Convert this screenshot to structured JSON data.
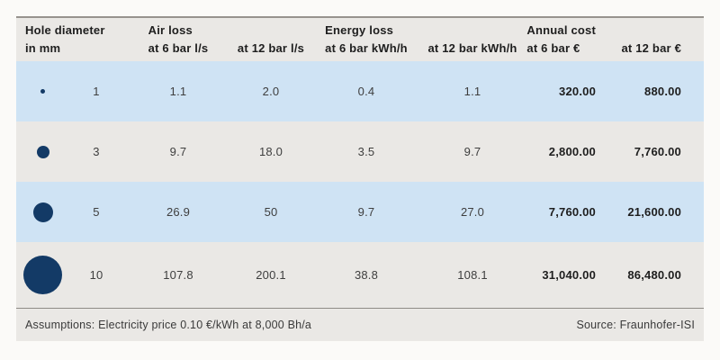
{
  "header": {
    "hole": {
      "line1": "Hole diameter",
      "line2": "in mm"
    },
    "air": {
      "group": "Air loss",
      "sub6": "at 6 bar l/s",
      "sub12": "at 12 bar l/s"
    },
    "energy": {
      "group": "Energy loss",
      "sub6": "at 6 bar kWh/h",
      "sub12": "at 12 bar kWh/h"
    },
    "cost": {
      "group": "Annual cost",
      "sub6": "at 6 bar €",
      "sub12": "at 12 bar €"
    }
  },
  "rows": [
    {
      "diameter": "1",
      "air6": "1.1",
      "air12": "2.0",
      "energy6": "0.4",
      "energy12": "1.1",
      "cost6": "320.00",
      "cost12": "880.00"
    },
    {
      "diameter": "3",
      "air6": "9.7",
      "air12": "18.0",
      "energy6": "3.5",
      "energy12": "9.7",
      "cost6": "2,800.00",
      "cost12": "7,760.00"
    },
    {
      "diameter": "5",
      "air6": "26.9",
      "air12": "50",
      "energy6": "9.7",
      "energy12": "27.0",
      "cost6": "7,760.00",
      "cost12": "21,600.00"
    },
    {
      "diameter": "10",
      "air6": "107.8",
      "air12": "200.1",
      "energy6": "38.8",
      "energy12": "108.1",
      "cost6": "31,040.00",
      "cost12": "86,480.00"
    }
  ],
  "footer": {
    "assumptions": "Assumptions: Electricity price 0.10 €/kWh at 8,000 Bh/a",
    "source": "Source: Fraunhofer-ISI"
  },
  "colors": {
    "row_highlight_blue": "#cfe3f4",
    "panel_gray": "#eae8e5",
    "dot_navy": "#133a66"
  },
  "chart_data": {
    "type": "table",
    "columns": [
      "Hole diameter in mm",
      "Air loss at 6 bar l/s",
      "Air loss at 12 bar l/s",
      "Energy loss at 6 bar kWh/h",
      "Energy loss at 12 bar kWh/h",
      "Annual cost at 6 bar €",
      "Annual cost at 12 bar €"
    ],
    "rows": [
      [
        1,
        1.1,
        2.0,
        0.4,
        1.1,
        320.0,
        880.0
      ],
      [
        3,
        9.7,
        18.0,
        3.5,
        9.7,
        2800.0,
        7760.0
      ],
      [
        5,
        26.9,
        50,
        9.7,
        27.0,
        7760.0,
        21600.0
      ],
      [
        10,
        107.8,
        200.1,
        38.8,
        108.1,
        31040.0,
        86480.0
      ]
    ],
    "footnote": "Assumptions: Electricity price 0.10 €/kWh at 8,000 Bh/a",
    "source": "Source: Fraunhofer-ISI"
  }
}
